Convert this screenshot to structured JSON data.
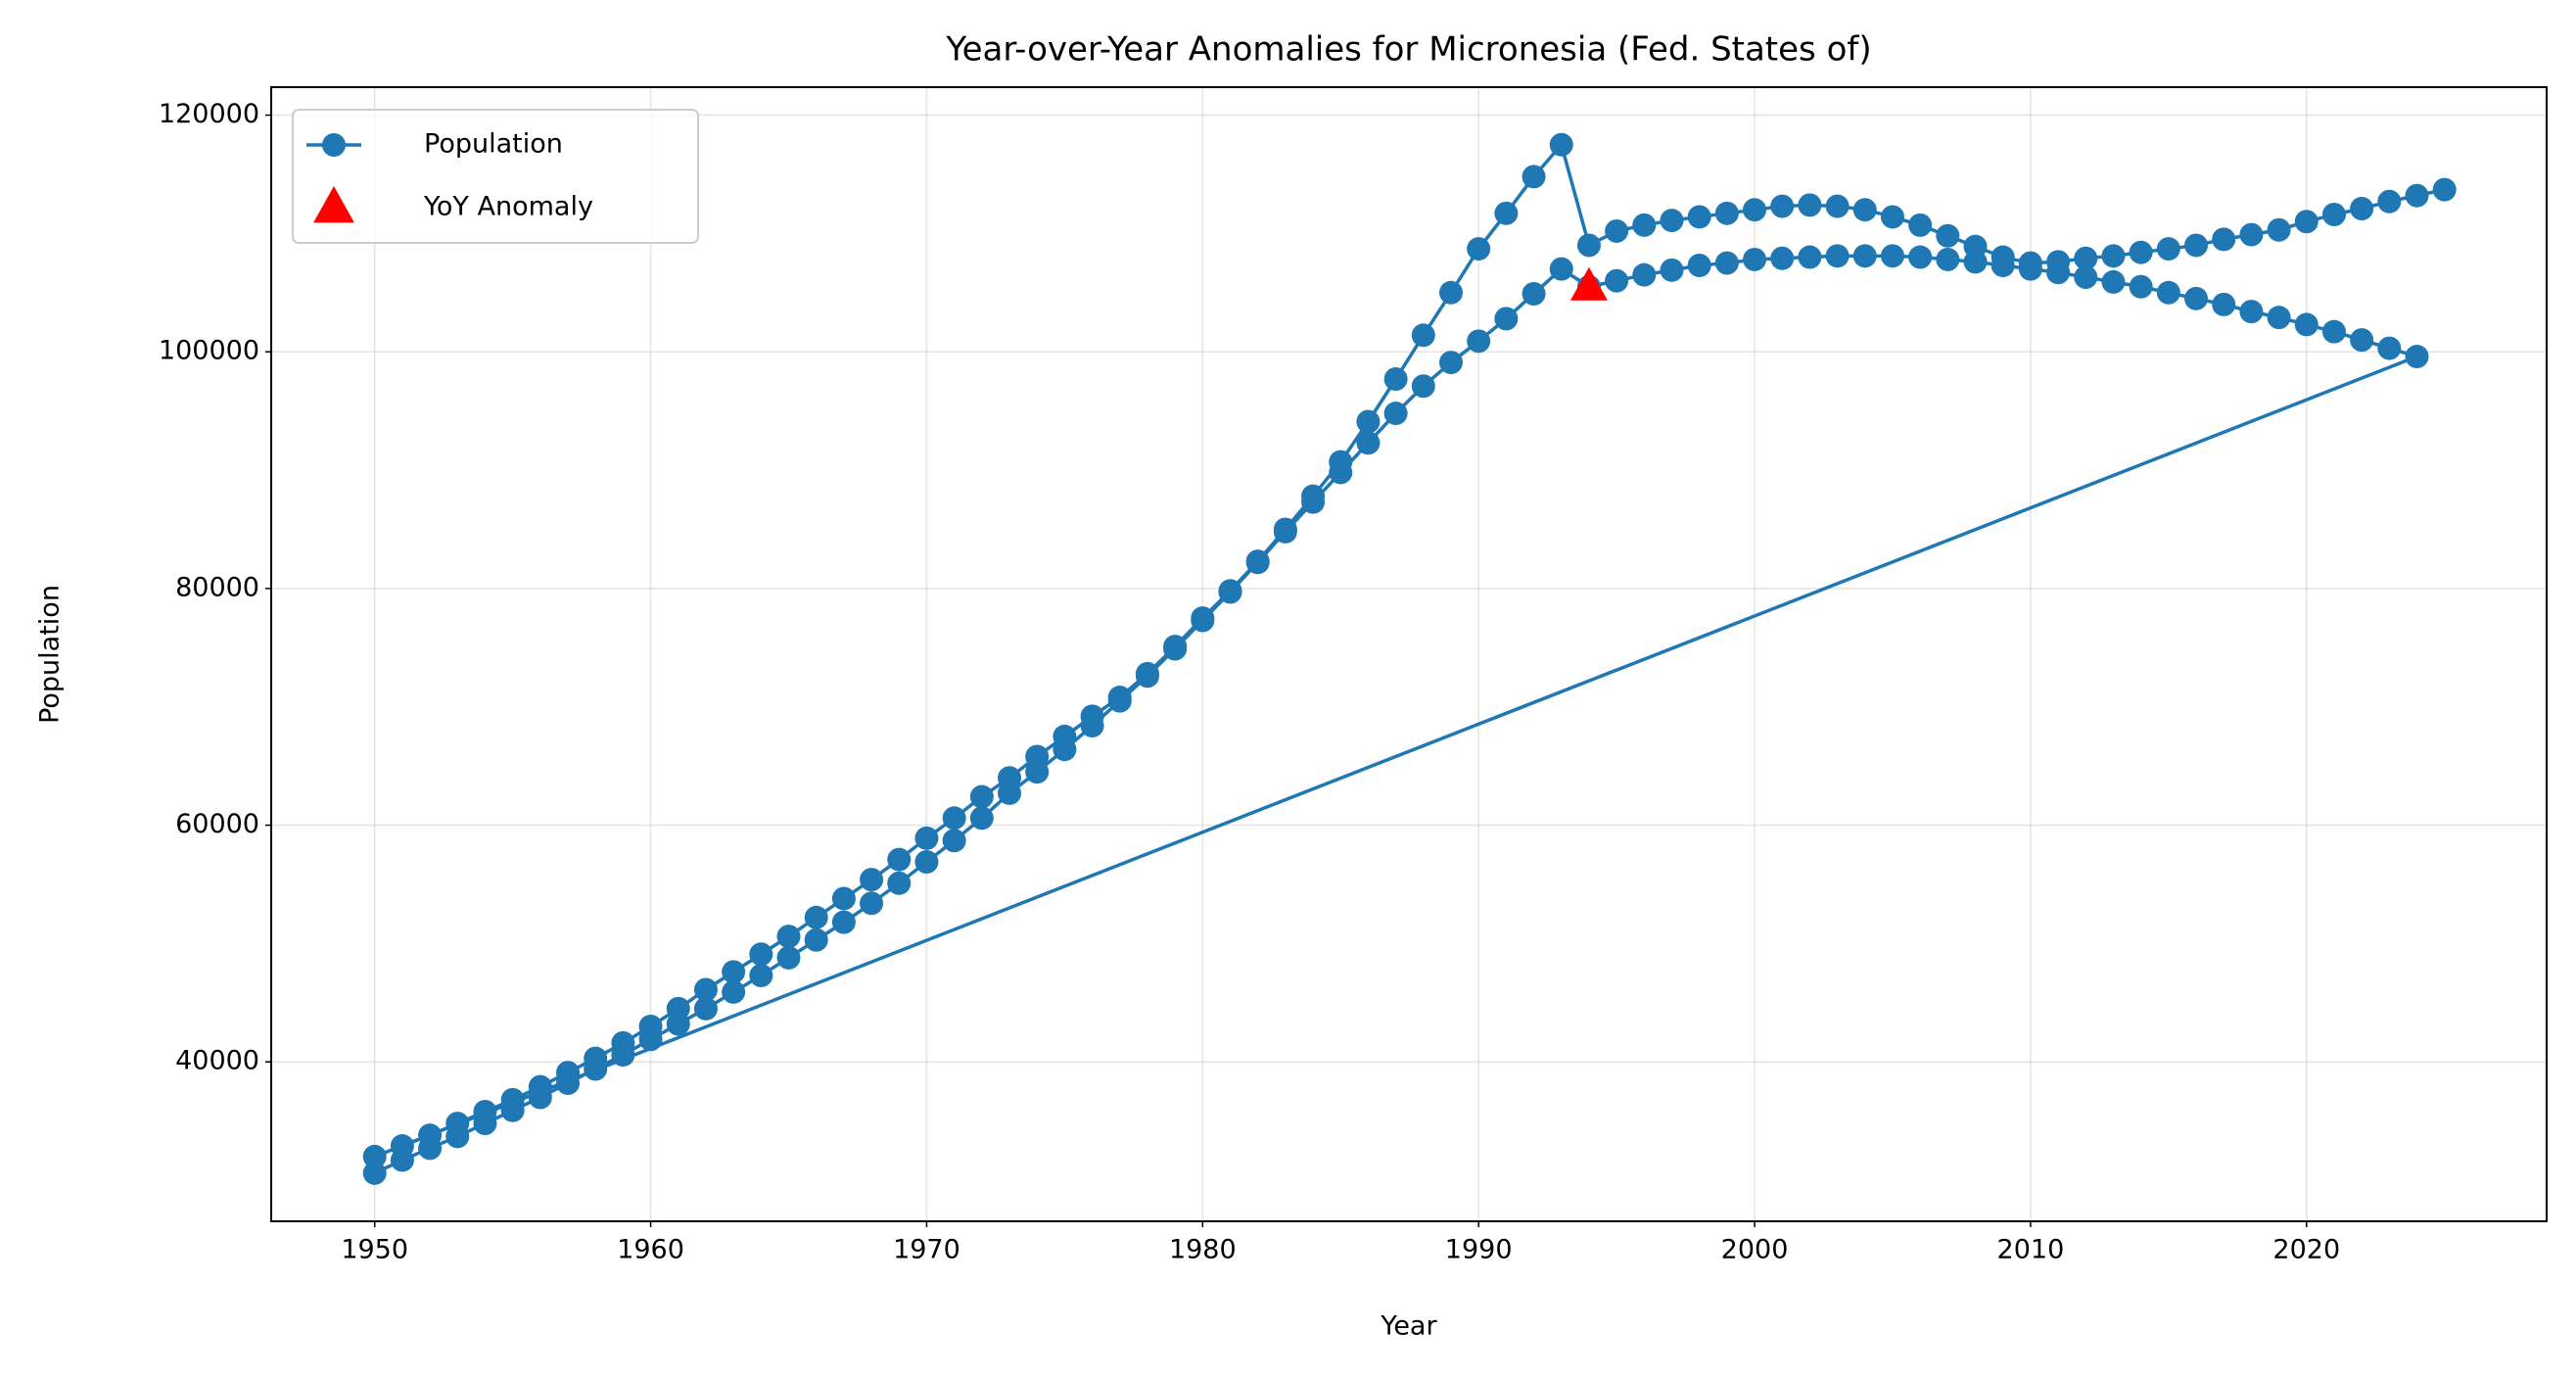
{
  "chart_data": {
    "type": "line",
    "title": "Year-over-Year Anomalies for Micronesia (Fed. States of)",
    "xlabel": "Year",
    "ylabel": "Population",
    "x": [
      1950,
      1951,
      1952,
      1953,
      1954,
      1955,
      1956,
      1957,
      1958,
      1959,
      1960,
      1961,
      1962,
      1963,
      1964,
      1965,
      1966,
      1967,
      1968,
      1969,
      1970,
      1971,
      1972,
      1973,
      1974,
      1975,
      1976,
      1977,
      1978,
      1979,
      1980,
      1981,
      1982,
      1983,
      1984,
      1985,
      1986,
      1987,
      1988,
      1989,
      1990,
      1991,
      1992,
      1993,
      1994,
      1995,
      1996,
      1997,
      1998,
      1999,
      2000,
      2001,
      2002,
      2003,
      2004,
      2005,
      2006,
      2007,
      2008,
      2009,
      2010,
      2011,
      2012,
      2013,
      2014,
      2015,
      2016,
      2017,
      2018,
      2019,
      2020,
      2021,
      2022,
      2023,
      2024,
      1950,
      1951,
      1952,
      1953,
      1954,
      1955,
      1956,
      1957,
      1958,
      1959,
      1960,
      1961,
      1962,
      1963,
      1964,
      1965,
      1966,
      1967,
      1968,
      1969,
      1970,
      1971,
      1972,
      1973,
      1974,
      1975,
      1976,
      1977,
      1978,
      1979,
      1980,
      1981,
      1982,
      1983,
      1984,
      1985,
      1986,
      1987,
      1988,
      1989,
      1990,
      1991,
      1992,
      1993,
      1994,
      1995,
      1996,
      1997,
      1998,
      1999,
      2000,
      2001,
      2002,
      2003,
      2004,
      2005,
      2006,
      2007,
      2008,
      2009,
      2010,
      2011,
      2012,
      2013,
      2014,
      2015,
      2016,
      2017,
      2018,
      2019,
      2020,
      2021,
      2022,
      2023,
      2024,
      2025
    ],
    "series": [
      {
        "name": "Population",
        "color": "#1f77b4",
        "marker": "circle",
        "values": [
          30600,
          31700,
          32700,
          33700,
          34800,
          35900,
          37000,
          38200,
          39400,
          40600,
          41900,
          43200,
          44500,
          45900,
          47300,
          48800,
          50300,
          51800,
          53400,
          55100,
          56900,
          58700,
          60600,
          62700,
          64500,
          66400,
          68400,
          70500,
          72600,
          74900,
          77300,
          79700,
          82200,
          84800,
          87300,
          89800,
          92300,
          94800,
          97100,
          99100,
          100900,
          102800,
          104900,
          107000,
          105500,
          106000,
          106500,
          106900,
          107300,
          107500,
          107800,
          107900,
          108000,
          108100,
          108100,
          108100,
          108000,
          107800,
          107600,
          107300,
          107000,
          106700,
          106300,
          105900,
          105500,
          105000,
          104500,
          104000,
          103400,
          102900,
          102300,
          101700,
          101000,
          100300,
          99600,
          32000,
          32900,
          33800,
          34800,
          35800,
          36800,
          37900,
          39100,
          40300,
          41600,
          43000,
          44500,
          46100,
          47600,
          49100,
          50600,
          52200,
          53800,
          55400,
          57100,
          58900,
          60600,
          62400,
          64000,
          65800,
          67500,
          69200,
          70800,
          72800,
          75100,
          77500,
          79800,
          82300,
          85000,
          87800,
          90700,
          94100,
          97700,
          101400,
          105000,
          108700,
          111700,
          114800,
          117500,
          109000,
          110200,
          110700,
          111100,
          111400,
          111700,
          112000,
          112300,
          112400,
          112300,
          112000,
          111400,
          110700,
          109800,
          108900,
          108000,
          107500,
          107600,
          107900,
          108100,
          108400,
          108700,
          109000,
          109500,
          109900,
          110300,
          111000,
          111600,
          112100,
          112700,
          113200,
          113700
        ]
      },
      {
        "name": "YoY Anomaly",
        "color": "#ff0000",
        "marker": "triangle",
        "x": [
          1994
        ],
        "values": [
          105500
        ]
      }
    ],
    "xlim": [
      1946.25,
      2028.7
    ],
    "ylim": [
      26530,
      122360
    ],
    "xticks": [
      1950,
      1960,
      1970,
      1980,
      1990,
      2000,
      2010,
      2020
    ],
    "yticks": [
      40000,
      60000,
      80000,
      100000,
      120000
    ],
    "grid": true,
    "legend": "upper left"
  }
}
